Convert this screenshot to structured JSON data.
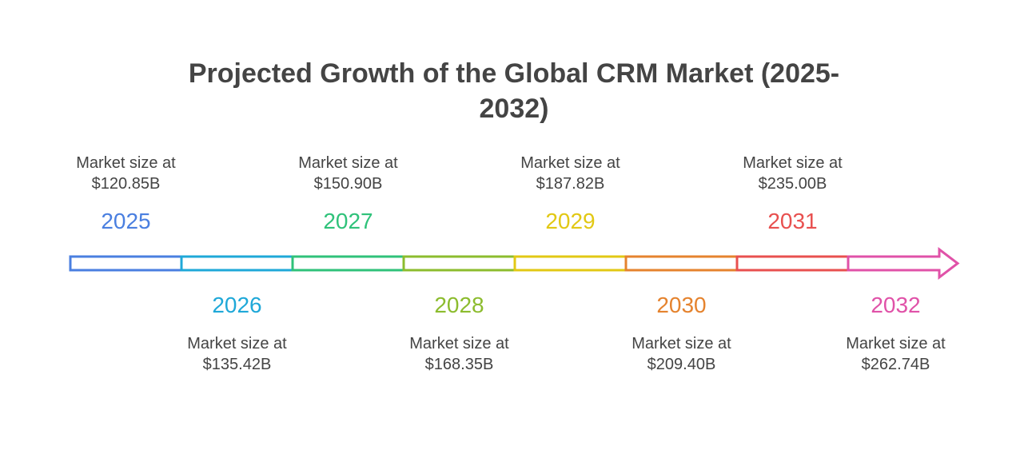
{
  "title": "Projected Growth of the Global CRM Market (2025-2032)",
  "milestones": [
    {
      "year": "2025",
      "label": "Market size at",
      "value": "$120.85B",
      "color": "#4a7fe0",
      "position": "above"
    },
    {
      "year": "2026",
      "label": "Market size at",
      "value": "$135.42B",
      "color": "#1fa8d8",
      "position": "below"
    },
    {
      "year": "2027",
      "label": "Market size at",
      "value": "$150.90B",
      "color": "#2fc27a",
      "position": "above"
    },
    {
      "year": "2028",
      "label": "Market size at",
      "value": "$168.35B",
      "color": "#8cbc2e",
      "position": "below"
    },
    {
      "year": "2029",
      "label": "Market size at",
      "value": "$187.82B",
      "color": "#e2c814",
      "position": "above"
    },
    {
      "year": "2030",
      "label": "Market size at",
      "value": "$209.40B",
      "color": "#e5832e",
      "position": "below"
    },
    {
      "year": "2031",
      "label": "Market size at",
      "value": "$235.00B",
      "color": "#e8504f",
      "position": "above"
    },
    {
      "year": "2032",
      "label": "Market size at",
      "value": "$262.74B",
      "color": "#e052a8",
      "position": "below"
    }
  ]
}
